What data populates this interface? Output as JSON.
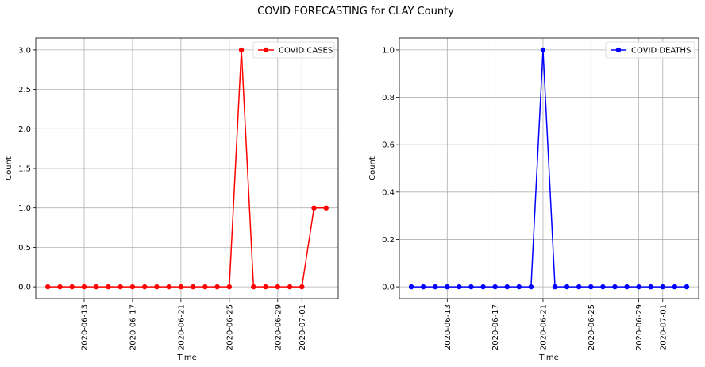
{
  "figure": {
    "suptitle": "COVID FORECASTING for CLAY County"
  },
  "chart_data": [
    {
      "type": "line",
      "title": "",
      "xlabel": "Time",
      "ylabel": "Count",
      "x": [
        "2020-06-10",
        "2020-06-11",
        "2020-06-12",
        "2020-06-13",
        "2020-06-14",
        "2020-06-15",
        "2020-06-16",
        "2020-06-17",
        "2020-06-18",
        "2020-06-19",
        "2020-06-20",
        "2020-06-21",
        "2020-06-22",
        "2020-06-23",
        "2020-06-24",
        "2020-06-25",
        "2020-06-26",
        "2020-06-27",
        "2020-06-28",
        "2020-06-29",
        "2020-06-30",
        "2020-07-01",
        "2020-07-02",
        "2020-07-03"
      ],
      "xlim": [
        "2020-06-09",
        "2020-07-04"
      ],
      "xticks": [
        "2020-06-13",
        "2020-06-17",
        "2020-06-21",
        "2020-06-25",
        "2020-06-29",
        "2020-07-01"
      ],
      "ylim": [
        -0.15,
        3.15
      ],
      "yticks": [
        "0.0",
        "0.5",
        "1.0",
        "1.5",
        "2.0",
        "2.5",
        "3.0"
      ],
      "grid": true,
      "legend": "top-right",
      "series": [
        {
          "name": "COVID CASES",
          "color": "#ff0000",
          "marker": "circle",
          "values": [
            0,
            0,
            0,
            0,
            0,
            0,
            0,
            0,
            0,
            0,
            0,
            0,
            0,
            0,
            0,
            0,
            3,
            0,
            0,
            0,
            0,
            0,
            1,
            1
          ]
        }
      ]
    },
    {
      "type": "line",
      "title": "",
      "xlabel": "Time",
      "ylabel": "Count",
      "x": [
        "2020-06-10",
        "2020-06-11",
        "2020-06-12",
        "2020-06-13",
        "2020-06-14",
        "2020-06-15",
        "2020-06-16",
        "2020-06-17",
        "2020-06-18",
        "2020-06-19",
        "2020-06-20",
        "2020-06-21",
        "2020-06-22",
        "2020-06-23",
        "2020-06-24",
        "2020-06-25",
        "2020-06-26",
        "2020-06-27",
        "2020-06-28",
        "2020-06-29",
        "2020-06-30",
        "2020-07-01",
        "2020-07-02",
        "2020-07-03"
      ],
      "xlim": [
        "2020-06-09",
        "2020-07-04"
      ],
      "xticks": [
        "2020-06-13",
        "2020-06-17",
        "2020-06-21",
        "2020-06-25",
        "2020-06-29",
        "2020-07-01"
      ],
      "ylim": [
        -0.05,
        1.05
      ],
      "yticks": [
        "0.0",
        "0.2",
        "0.4",
        "0.6",
        "0.8",
        "1.0"
      ],
      "grid": true,
      "legend": "top-right",
      "series": [
        {
          "name": "COVID DEATHS",
          "color": "#0000ff",
          "marker": "circle",
          "values": [
            0,
            0,
            0,
            0,
            0,
            0,
            0,
            0,
            0,
            0,
            0,
            1,
            0,
            0,
            0,
            0,
            0,
            0,
            0,
            0,
            0,
            0,
            0,
            0
          ]
        }
      ]
    }
  ]
}
